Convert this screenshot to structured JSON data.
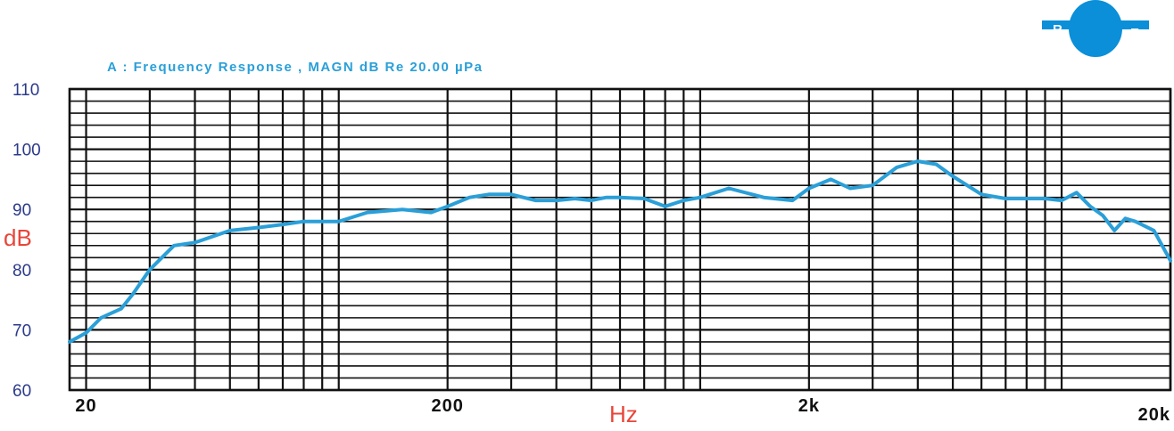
{
  "colors": {
    "grid": "#111111",
    "series": "#2a9fd8",
    "title": "#2a9fd8",
    "ytick": "#2b3a8a",
    "xtick": "#111111",
    "axis_label": "#e8463a",
    "logo": "#0a8fd8"
  },
  "logo": {
    "icon": "speaker-logo-icon",
    "left_letter": "R",
    "right_letter": "E"
  },
  "chart_data": {
    "type": "line",
    "title": "A :    Frequency Response , MAGN dB  Re 20.00 µPa",
    "xlabel": "Hz",
    "ylabel": "dB",
    "xscale": "log",
    "xlim": [
      18,
      20000
    ],
    "ylim": [
      60,
      110
    ],
    "grid": true,
    "x_ticks": [
      {
        "value": 20,
        "label": "20"
      },
      {
        "value": 200,
        "label": "200"
      },
      {
        "value": 2000,
        "label": "2k"
      },
      {
        "value": 20000,
        "label": "20k"
      }
    ],
    "y_ticks": [
      {
        "value": 60,
        "label": "60"
      },
      {
        "value": 70,
        "label": "70"
      },
      {
        "value": 80,
        "label": "80"
      },
      {
        "value": 90,
        "label": "90"
      },
      {
        "value": 100,
        "label": "100"
      },
      {
        "value": 110,
        "label": "110"
      }
    ],
    "series": [
      {
        "x": [
          18,
          20,
          22,
          25,
          27,
          30,
          35,
          40,
          50,
          60,
          70,
          80,
          100,
          120,
          150,
          180,
          200,
          230,
          260,
          300,
          350,
          400,
          450,
          500,
          550,
          600,
          700,
          800,
          900,
          1000,
          1200,
          1500,
          1800,
          2000,
          2300,
          2600,
          3000,
          3500,
          4000,
          4500,
          5000,
          6000,
          7000,
          8000,
          9000,
          10000,
          11000,
          12000,
          13000,
          14000,
          15000,
          16000,
          18000,
          20000
        ],
        "y": [
          68,
          69.5,
          72,
          73.5,
          76,
          80,
          84,
          84.5,
          86.5,
          87,
          87.5,
          88,
          88,
          89.5,
          90,
          89.5,
          90.5,
          92,
          92.5,
          92.5,
          91.5,
          91.5,
          91.8,
          91.5,
          92,
          92,
          91.8,
          90.5,
          91.5,
          92,
          93.5,
          92,
          91.5,
          93.5,
          95,
          93.5,
          94,
          97,
          98,
          97.5,
          95.5,
          92.5,
          91.8,
          91.8,
          91.8,
          91.5,
          92.8,
          90.5,
          89,
          86.5,
          88.5,
          88,
          86.5,
          81.5
        ]
      }
    ]
  }
}
